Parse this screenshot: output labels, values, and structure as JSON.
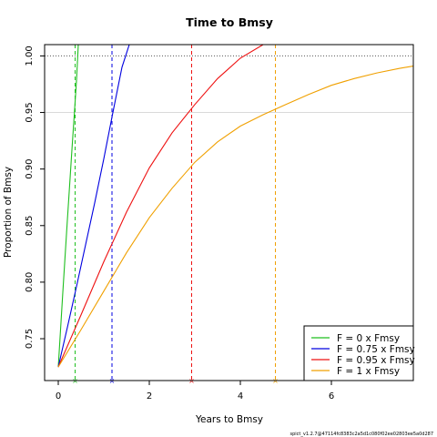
{
  "chart_data": {
    "type": "line",
    "title": "Time to Bmsy",
    "xlabel": "Years to Bmsy",
    "ylabel": "Proportion of Bmsy",
    "xlim": [
      -0.3,
      7.8
    ],
    "ylim": [
      0.713,
      1.01
    ],
    "x_ticks": [
      0,
      2,
      4,
      6
    ],
    "y_ticks": [
      0.75,
      0.8,
      0.85,
      0.9,
      0.95,
      1.0
    ],
    "y_tick_labels": [
      "0.75",
      "0.80",
      "0.85",
      "0.90",
      "0.95",
      "1.00"
    ],
    "reference_line": 1.0,
    "grid_line": 0.95,
    "legend_position": "bottom-right",
    "series": [
      {
        "name": "F = 0 x Fmsy",
        "color": "#1fbf1f",
        "x": [
          0,
          0.05,
          0.1,
          0.15,
          0.2,
          0.25,
          0.3,
          0.35,
          0.4,
          0.44
        ],
        "y": [
          0.725,
          0.758,
          0.791,
          0.823,
          0.855,
          0.886,
          0.917,
          0.947,
          0.978,
          1.01
        ],
        "time_to_95pct": 0.37
      },
      {
        "name": "F = 0.75 x Fmsy",
        "color": "#0000e0",
        "x": [
          0,
          0.2,
          0.4,
          0.6,
          0.8,
          1.0,
          1.2,
          1.4,
          1.56
        ],
        "y": [
          0.725,
          0.76,
          0.796,
          0.833,
          0.87,
          0.909,
          0.95,
          0.99,
          1.01
        ],
        "time_to_95pct": 1.18
      },
      {
        "name": "F = 0.95 x Fmsy",
        "color": "#ee1111",
        "x": [
          0,
          0.5,
          1.0,
          1.5,
          2.0,
          2.5,
          3.0,
          3.5,
          4.0,
          4.5
        ],
        "y": [
          0.725,
          0.771,
          0.818,
          0.862,
          0.901,
          0.932,
          0.957,
          0.98,
          0.998,
          1.01
        ],
        "time_to_95pct": 2.93
      },
      {
        "name": "F = 1 x Fmsy",
        "color": "#f0a000",
        "x": [
          0,
          0.5,
          1.0,
          1.5,
          2.0,
          2.5,
          3.0,
          3.5,
          4.0,
          4.5,
          5.0,
          5.5,
          6.0,
          6.5,
          7.0,
          7.5,
          7.8
        ],
        "y": [
          0.725,
          0.758,
          0.792,
          0.826,
          0.857,
          0.883,
          0.906,
          0.924,
          0.938,
          0.948,
          0.957,
          0.966,
          0.974,
          0.98,
          0.985,
          0.989,
          0.991
        ],
        "time_to_95pct": 4.77
      }
    ]
  },
  "footnote": "spict_v1.2.7@47114fc8383c2a5d1c080f02ee02803ee5a0d287"
}
